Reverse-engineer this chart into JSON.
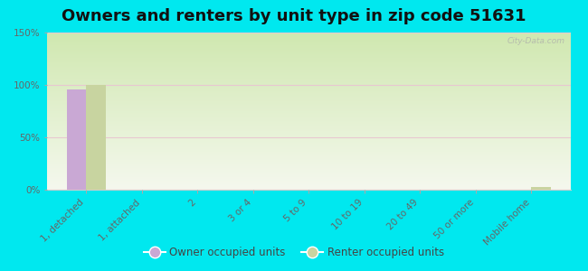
{
  "title": "Owners and renters by unit type in zip code 51631",
  "categories": [
    "1, detached",
    "1, attached",
    "2",
    "3 or 4",
    "5 to 9",
    "10 to 19",
    "20 to 49",
    "50 or more",
    "Mobile home"
  ],
  "owner_values": [
    96,
    0,
    0,
    0,
    0,
    0,
    0,
    0,
    0
  ],
  "renter_values": [
    100,
    0,
    0,
    0,
    0,
    0,
    0,
    0,
    3
  ],
  "owner_color": "#c9a8d4",
  "renter_color": "#c8d4a0",
  "background_outer": "#00e8ef",
  "bg_top_left": "#d0e8b0",
  "bg_bottom_right": "#f5f8ee",
  "ylim": [
    0,
    150
  ],
  "yticks": [
    0,
    50,
    100,
    150
  ],
  "ytick_labels": [
    "0%",
    "50%",
    "100%",
    "150%"
  ],
  "legend_owner": "Owner occupied units",
  "legend_renter": "Renter occupied units",
  "watermark": "City-Data.com",
  "bar_width": 0.35,
  "title_fontsize": 13,
  "tick_fontsize": 7.5,
  "grid_color": "#e8c8d0",
  "spine_color": "#cccccc"
}
